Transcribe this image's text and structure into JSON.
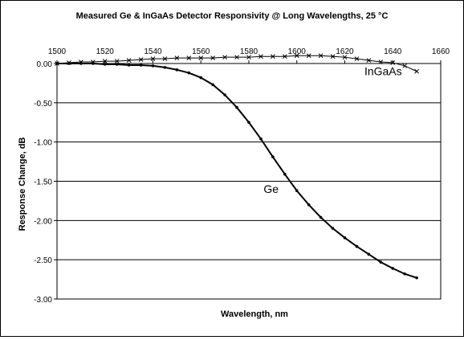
{
  "chart_data": {
    "type": "line",
    "title": "Measured Ge & InGaAs Detector Responsivity @ Long Wavelengths, 25 °C",
    "xlabel": "Wavelength, nm",
    "ylabel": "Response Change, dB",
    "xlim": [
      1500,
      1660
    ],
    "ylim": [
      -3.0,
      0.0
    ],
    "x_ticks": [
      1500,
      1520,
      1540,
      1560,
      1580,
      1600,
      1620,
      1640,
      1660
    ],
    "x_tick_labels": [
      "1500",
      "1520",
      "1540",
      "1560",
      "1580",
      "1600",
      "1620",
      "1640",
      "1660"
    ],
    "y_ticks": [
      0,
      -0.5,
      -1.0,
      -1.5,
      -2.0,
      -2.5,
      -3.0
    ],
    "y_tick_labels": [
      "0.00",
      "-0.50",
      "-1.00",
      "-1.50",
      "-2.00",
      "-2.50",
      "-3.00"
    ],
    "x_axis_position": "top",
    "grid": "horizontal",
    "legend": "none (series labels on plot)",
    "series": [
      {
        "name": "Ge",
        "label_position": "middle",
        "marker": "dot",
        "x": [
          1500,
          1505,
          1510,
          1515,
          1520,
          1525,
          1530,
          1535,
          1540,
          1545,
          1550,
          1555,
          1560,
          1565,
          1570,
          1575,
          1580,
          1585,
          1590,
          1595,
          1600,
          1605,
          1610,
          1615,
          1620,
          1625,
          1630,
          1635,
          1640,
          1645,
          1650
        ],
        "values": [
          0.0,
          0.0,
          0.0,
          0.0,
          -0.01,
          -0.01,
          -0.02,
          -0.02,
          -0.03,
          -0.05,
          -0.08,
          -0.12,
          -0.18,
          -0.27,
          -0.4,
          -0.56,
          -0.75,
          -0.96,
          -1.19,
          -1.41,
          -1.62,
          -1.8,
          -1.96,
          -2.1,
          -2.22,
          -2.33,
          -2.43,
          -2.53,
          -2.61,
          -2.68,
          -2.73
        ]
      },
      {
        "name": "InGaAs",
        "label_position": "right",
        "marker": "x",
        "x": [
          1500,
          1505,
          1510,
          1515,
          1520,
          1525,
          1530,
          1535,
          1540,
          1545,
          1550,
          1555,
          1560,
          1565,
          1570,
          1575,
          1580,
          1585,
          1590,
          1595,
          1600,
          1605,
          1610,
          1615,
          1620,
          1625,
          1630,
          1635,
          1640,
          1645,
          1650
        ],
        "values": [
          0.0,
          0.01,
          0.02,
          0.02,
          0.03,
          0.03,
          0.04,
          0.05,
          0.06,
          0.06,
          0.07,
          0.07,
          0.07,
          0.07,
          0.08,
          0.08,
          0.08,
          0.09,
          0.09,
          0.09,
          0.1,
          0.1,
          0.1,
          0.09,
          0.08,
          0.06,
          0.04,
          0.02,
          0.01,
          -0.03,
          -0.1
        ]
      }
    ]
  }
}
